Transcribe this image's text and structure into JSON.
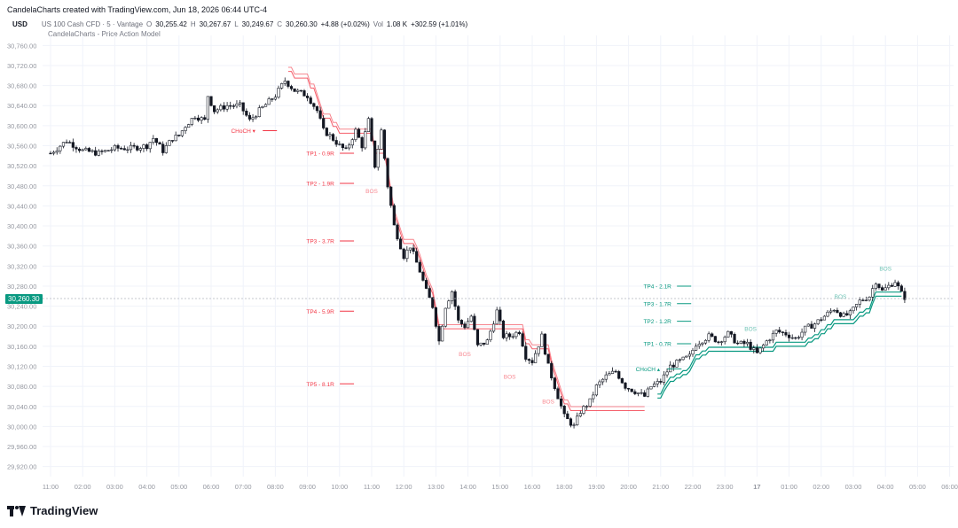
{
  "header": {
    "title": "CandelaCharts created with TradingView.com, Jun 18, 2026 06:44 UTC-4"
  },
  "symbol": {
    "currency": "USD",
    "name": "US 100 Cash CFD · 5 · Vantage",
    "open_label": "O",
    "open": "30,255.42",
    "high_label": "H",
    "high": "30,267.67",
    "low_label": "L",
    "low": "30,249.67",
    "close_label": "C",
    "close": "30,260.30",
    "change": "+4.88 (+0.02%)",
    "vol_label": "Vol",
    "vol": "1.08 K",
    "vol_change": "+302.59 (+1.01%)"
  },
  "indicator": "CandelaCharts - Price Action Model",
  "last_price": "30,260.30",
  "footer": {
    "brand": "TradingView"
  },
  "colors": {
    "bull": "#089981",
    "bear": "#f23645",
    "candle": "#131722",
    "grid": "#f0f3fa"
  },
  "chart_data": {
    "type": "candlestick",
    "y_ticks": [
      "30,760.00",
      "30,720.00",
      "30,680.00",
      "30,640.00",
      "30,600.00",
      "30,560.00",
      "30,520.00",
      "30,480.00",
      "30,440.00",
      "30,400.00",
      "30,360.00",
      "30,320.00",
      "30,280.00",
      "30,240.00",
      "30,200.00",
      "30,160.00",
      "30,120.00",
      "30,080.00",
      "30,040.00",
      "30,000.00",
      "29,960.00",
      "29,920.00"
    ],
    "ylim": [
      29900,
      30780
    ],
    "x_ticks": [
      "11:00",
      "02:00",
      "03:00",
      "04:00",
      "05:00",
      "06:00",
      "07:00",
      "08:00",
      "09:00",
      "10:00",
      "11:00",
      "12:00",
      "13:00",
      "14:00",
      "15:00",
      "16:00",
      "18:00",
      "19:00",
      "20:00",
      "21:00",
      "22:00",
      "23:00",
      "17",
      "01:00",
      "02:00",
      "03:00",
      "04:00",
      "05:00",
      "06:00"
    ],
    "price_path": [
      [
        0,
        30545
      ],
      [
        0.3,
        30560
      ],
      [
        0.5,
        30570
      ],
      [
        1,
        30550
      ],
      [
        1.5,
        30545
      ],
      [
        2,
        30555
      ],
      [
        2.5,
        30555
      ],
      [
        3,
        30560
      ],
      [
        3.2,
        30575
      ],
      [
        3.5,
        30550
      ],
      [
        3.8,
        30575
      ],
      [
        4,
        30580
      ],
      [
        4.2,
        30600
      ],
      [
        4.5,
        30620
      ],
      [
        4.8,
        30610
      ],
      [
        4.9,
        30660
      ],
      [
        5.1,
        30630
      ],
      [
        5.5,
        30640
      ],
      [
        5.9,
        30640
      ],
      [
        6.2,
        30610
      ],
      [
        6.5,
        30630
      ],
      [
        7,
        30660
      ],
      [
        7.3,
        30690
      ],
      [
        7.6,
        30670
      ],
      [
        8,
        30660
      ],
      [
        8.3,
        30630
      ],
      [
        8.5,
        30590
      ],
      [
        8.7,
        30580
      ],
      [
        9,
        30560
      ],
      [
        9.2,
        30550
      ],
      [
        9.5,
        30590
      ],
      [
        9.7,
        30560
      ],
      [
        9.9,
        30610
      ],
      [
        10.1,
        30520
      ],
      [
        10.3,
        30590
      ],
      [
        10.5,
        30480
      ],
      [
        10.7,
        30400
      ],
      [
        11,
        30340
      ],
      [
        11.2,
        30360
      ],
      [
        11.5,
        30310
      ],
      [
        11.7,
        30270
      ],
      [
        11.9,
        30240
      ],
      [
        12.1,
        30170
      ],
      [
        12.3,
        30240
      ],
      [
        12.5,
        30270
      ],
      [
        12.7,
        30210
      ],
      [
        12.9,
        30200
      ],
      [
        13.1,
        30220
      ],
      [
        13.3,
        30160
      ],
      [
        13.6,
        30170
      ],
      [
        13.9,
        30230
      ],
      [
        14.1,
        30180
      ],
      [
        14.3,
        30180
      ],
      [
        14.6,
        30190
      ],
      [
        14.8,
        30140
      ],
      [
        15.0,
        30130
      ],
      [
        15.3,
        30180
      ],
      [
        15.5,
        30120
      ],
      [
        15.7,
        30080
      ],
      [
        16.0,
        30020
      ],
      [
        16.3,
        30000
      ],
      [
        16.5,
        30030
      ],
      [
        16.8,
        30050
      ],
      [
        17.0,
        30080
      ],
      [
        17.3,
        30100
      ],
      [
        17.6,
        30110
      ],
      [
        17.9,
        30080
      ],
      [
        18.2,
        30070
      ],
      [
        18.5,
        30060
      ],
      [
        18.7,
        30080
      ],
      [
        19.0,
        30090
      ],
      [
        19.3,
        30120
      ],
      [
        19.6,
        30130
      ],
      [
        19.9,
        30140
      ],
      [
        20.1,
        30165
      ],
      [
        20.5,
        30180
      ],
      [
        20.8,
        30170
      ],
      [
        21.1,
        30185
      ],
      [
        21.4,
        30165
      ],
      [
        21.7,
        30165
      ],
      [
        22.0,
        30145
      ],
      [
        22.3,
        30170
      ],
      [
        22.6,
        30190
      ],
      [
        22.9,
        30185
      ],
      [
        23.2,
        30175
      ],
      [
        23.5,
        30195
      ],
      [
        23.8,
        30205
      ],
      [
        24.1,
        30220
      ],
      [
        24.4,
        30235
      ],
      [
        24.7,
        30220
      ],
      [
        24.9,
        30225
      ],
      [
        25.2,
        30250
      ],
      [
        25.5,
        30260
      ],
      [
        25.7,
        30290
      ],
      [
        25.9,
        30270
      ],
      [
        26.1,
        30280
      ],
      [
        26.3,
        30290
      ],
      [
        26.5,
        30265
      ],
      [
        26.6,
        30258
      ]
    ],
    "annotations": [
      {
        "label": "CHoCH ▾",
        "kind": "bear",
        "x": 6.0,
        "y": 30590
      },
      {
        "label": "TP1 - 0.9R",
        "kind": "bear",
        "x": 8.4,
        "y": 30545
      },
      {
        "label": "TP2 - 1.9R",
        "kind": "bear",
        "x": 8.4,
        "y": 30485
      },
      {
        "label": "TP3 - 3.7R",
        "kind": "bear",
        "x": 8.4,
        "y": 30370
      },
      {
        "label": "TP4 - 5.9R",
        "kind": "bear",
        "x": 8.4,
        "y": 30230
      },
      {
        "label": "TP5 - 8.1R",
        "kind": "bear",
        "x": 8.4,
        "y": 30085
      },
      {
        "label": "BOS",
        "kind": "bear_bos",
        "x": 10.0,
        "y": 30470
      },
      {
        "label": "BOS",
        "kind": "bear_bos",
        "x": 12.9,
        "y": 30145
      },
      {
        "label": "BOS",
        "kind": "bear_bos",
        "x": 14.3,
        "y": 30100
      },
      {
        "label": "BOS",
        "kind": "bear_bos",
        "x": 15.5,
        "y": 30050
      },
      {
        "label": "CHoCH ▴",
        "kind": "bull",
        "x": 18.6,
        "y": 30115
      },
      {
        "label": "TP1 - 0.7R",
        "kind": "bull",
        "x": 18.9,
        "y": 30165
      },
      {
        "label": "TP2 - 1.2R",
        "kind": "bull",
        "x": 18.9,
        "y": 30210
      },
      {
        "label": "TP3 - 1.7R",
        "kind": "bull",
        "x": 18.9,
        "y": 30245
      },
      {
        "label": "TP4 - 2.1R",
        "kind": "bull",
        "x": 18.9,
        "y": 30280
      },
      {
        "label": "BOS",
        "kind": "bull_bos",
        "x": 21.8,
        "y": 30195
      },
      {
        "label": "BOS",
        "kind": "bull_bos",
        "x": 24.6,
        "y": 30260
      },
      {
        "label": "BOS",
        "kind": "bull_bos",
        "x": 26.0,
        "y": 30315
      }
    ]
  }
}
